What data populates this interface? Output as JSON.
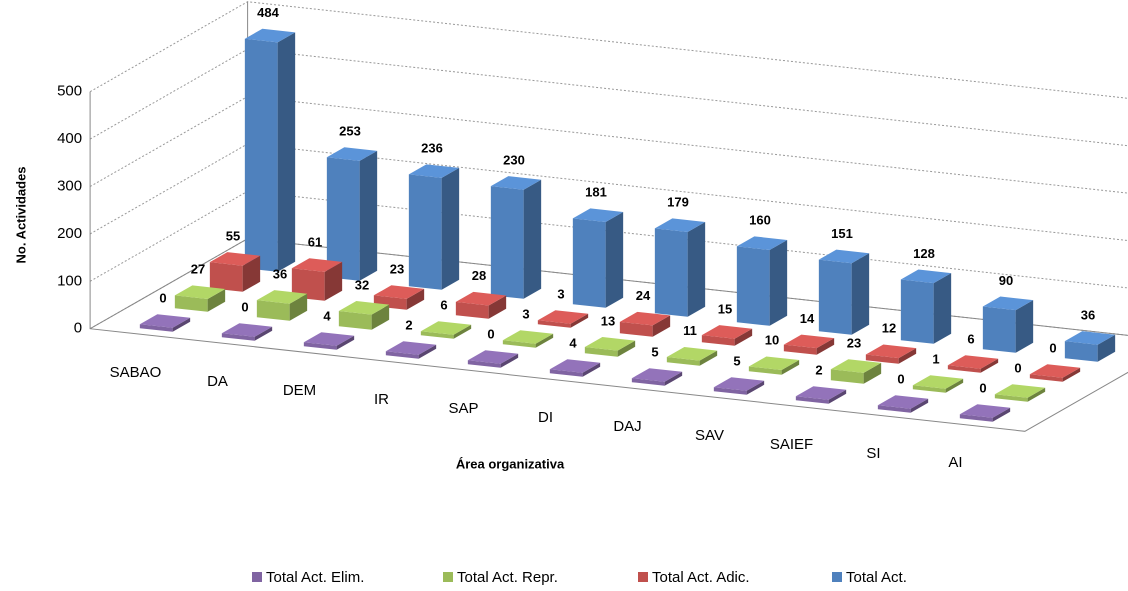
{
  "chart_data": {
    "type": "bar3d",
    "x_label": "Área organizativa",
    "y_label": "No. Actividades",
    "categories": [
      "SABAO",
      "DA",
      "DEM",
      "IR",
      "SAP",
      "DI",
      "DAJ",
      "SAV",
      "SAIEF",
      "SI",
      "AI"
    ],
    "series": [
      {
        "name": "Total Act. Elim.",
        "color": "#8064a2",
        "values": [
          0,
          0,
          4,
          2,
          0,
          4,
          5,
          5,
          2,
          0,
          0
        ]
      },
      {
        "name": "Total Act. Repr.",
        "color": "#9bbb59",
        "values": [
          27,
          36,
          32,
          6,
          3,
          13,
          11,
          10,
          23,
          1,
          0
        ]
      },
      {
        "name": "Total Act. Adic.",
        "color": "#c0504d",
        "values": [
          55,
          61,
          23,
          28,
          3,
          24,
          15,
          14,
          12,
          6,
          0
        ]
      },
      {
        "name": "Total Act.",
        "color": "#4f81bd",
        "values": [
          484,
          253,
          236,
          230,
          181,
          179,
          160,
          151,
          128,
          90,
          36
        ]
      }
    ],
    "ylim": [
      0,
      500
    ],
    "yticks": [
      0,
      100,
      200,
      300,
      400,
      500
    ],
    "grid": true,
    "legend": "bottom"
  }
}
